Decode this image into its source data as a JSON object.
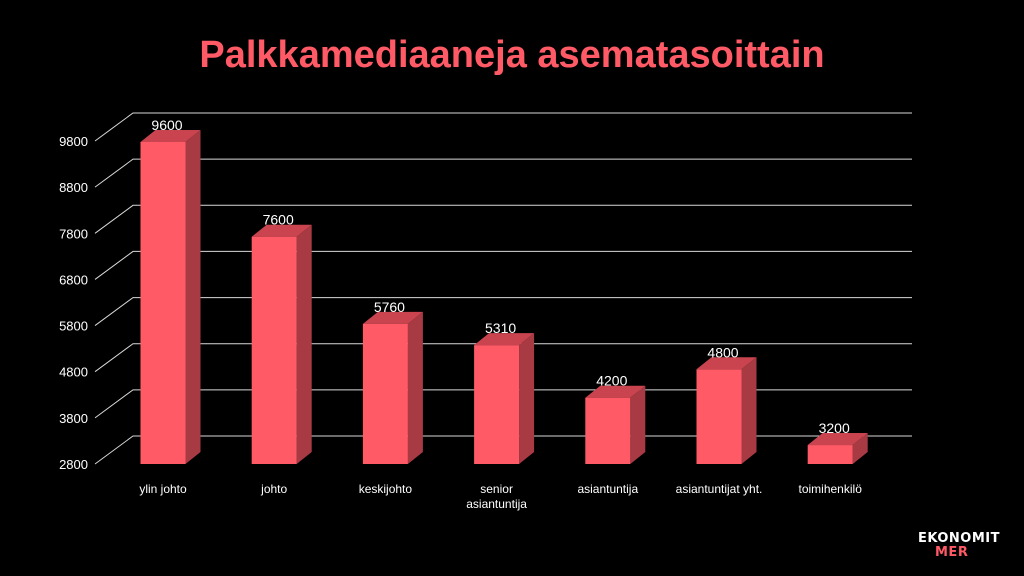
{
  "chart_data": {
    "type": "bar",
    "title": "Palkkamediaaneja asematasoittain",
    "categories": [
      "ylin johto",
      "johto",
      "keskijohto",
      "senior asiantuntija",
      "asiantuntija",
      "asiantuntijat yht.",
      "toimihenkilö"
    ],
    "values": [
      9600,
      7600,
      5760,
      5310,
      4200,
      4800,
      3200
    ],
    "ylim": [
      2800,
      9800
    ],
    "yticks": [
      2800,
      3800,
      4800,
      5800,
      6800,
      7800,
      8800,
      9800
    ],
    "grid": true,
    "style": "3d-column",
    "colors": {
      "bar_front": "#ff5a66",
      "bar_side": "#a83a44",
      "bar_top": "#c9444f",
      "grid": "#d9d9d9",
      "text": "#ffffff"
    }
  },
  "logo": {
    "line1": "EKONOMIT",
    "line2": "MER"
  }
}
